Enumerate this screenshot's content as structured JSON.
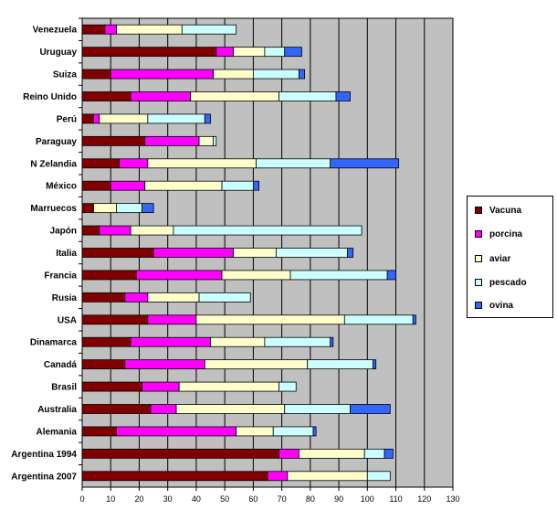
{
  "chart_data": {
    "type": "bar",
    "orientation": "horizontal",
    "stacked": true,
    "categories": [
      "Venezuela",
      "Uruguay",
      "Suiza",
      "Reino Unido",
      "Perú",
      "Paraguay",
      "N Zelandia",
      "México",
      "Marruecos",
      "Japón",
      "Italia",
      "Francia",
      "Rusia",
      "USA",
      "Dinamarca",
      "Canadá",
      "Brasil",
      "Australia",
      "Alemania",
      "Argentina 1994",
      "Argentina 2007"
    ],
    "series": [
      {
        "name": "Vacuna",
        "color": "#800000",
        "values": [
          8,
          47,
          10,
          17,
          4,
          22,
          13,
          10,
          4,
          6,
          25,
          19,
          15,
          23,
          17,
          15,
          21,
          24,
          12,
          69,
          65
        ]
      },
      {
        "name": "porcina",
        "color": "#ff00ff",
        "values": [
          4,
          6,
          36,
          21,
          2,
          19,
          10,
          12,
          0,
          11,
          28,
          30,
          8,
          17,
          28,
          28,
          13,
          9,
          42,
          7,
          7
        ]
      },
      {
        "name": "aviar",
        "color": "#ffffcc",
        "values": [
          23,
          11,
          14,
          31,
          17,
          5,
          38,
          27,
          8,
          15,
          15,
          24,
          18,
          52,
          19,
          36,
          35,
          38,
          13,
          23,
          28
        ]
      },
      {
        "name": "pescado",
        "color": "#ccffff",
        "values": [
          19,
          7,
          16,
          20,
          20,
          1,
          26,
          11,
          9,
          66,
          25,
          34,
          18,
          24,
          23,
          23,
          6,
          23,
          14,
          7,
          8
        ]
      },
      {
        "name": "ovina",
        "color": "#3366ff",
        "values": [
          0,
          6,
          2,
          5,
          2,
          0,
          24,
          2,
          4,
          0,
          2,
          3,
          0,
          1,
          1,
          1,
          0,
          14,
          1,
          3,
          0
        ]
      }
    ],
    "xlim": [
      0,
      130
    ],
    "xticks": [
      0,
      10,
      20,
      30,
      40,
      50,
      60,
      70,
      80,
      90,
      100,
      110,
      120,
      130
    ],
    "grid": true,
    "legend_position": "right"
  }
}
